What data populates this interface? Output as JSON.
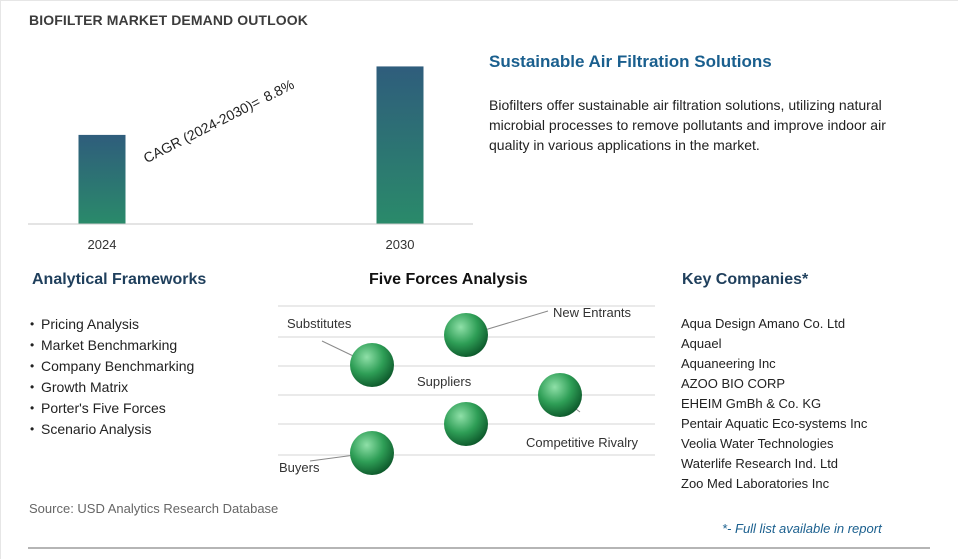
{
  "header": {
    "title": "BIOFILTER MARKET DEMAND OUTLOOK"
  },
  "chart_data": {
    "type": "bar",
    "categories": [
      "2024",
      "2030"
    ],
    "values": [
      0.54,
      0.955
    ],
    "value_scale_note": "relative heights only; no axis values printed",
    "annotation": {
      "label": "CAGR (2024-2030)=",
      "value": "8.8%"
    },
    "colors": {
      "bar_top": "#2f5d7c",
      "bar_bottom": "#2a8a6a",
      "baseline": "#c8c8c8"
    }
  },
  "summary": {
    "headline": "Sustainable Air Filtration Solutions",
    "description": "Biofilters offer sustainable air filtration solutions, utilizing natural microbial processes to remove pollutants and improve indoor air quality in various applications in the market."
  },
  "frameworks": {
    "title": "Analytical Frameworks",
    "items": [
      "Pricing Analysis",
      "Market Benchmarking",
      "Company Benchmarking",
      "Growth Matrix",
      "Porter's Five Forces",
      "Scenario Analysis"
    ]
  },
  "five_forces": {
    "title": "Five Forces Analysis",
    "labels": {
      "substitutes": "Substitutes",
      "new_entrants": "New Entrants",
      "suppliers": "Suppliers",
      "competitive_rivalry": "Competitive Rivalry",
      "buyers": "Buyers"
    },
    "colors": {
      "sphere_light": "#8fe0a8",
      "sphere_mid": "#2e9e56",
      "sphere_dark": "#0e5a2c",
      "rule": "#d6d6d6",
      "leader": "#8a8a8a"
    }
  },
  "companies": {
    "title": "Key Companies*",
    "items": [
      "Aqua Design Amano Co. Ltd",
      "Aquael",
      "Aquaneering Inc",
      "AZOO BIO CORP",
      "EHEIM GmBh & Co. KG",
      "Pentair Aquatic Eco-systems Inc",
      "Veolia Water Technologies",
      "Waterlife Research Ind. Ltd",
      "Zoo Med Laboratories Inc"
    ]
  },
  "footer": {
    "source": "Source: USD Analytics Research Database",
    "note": "*- Full list available in report"
  }
}
